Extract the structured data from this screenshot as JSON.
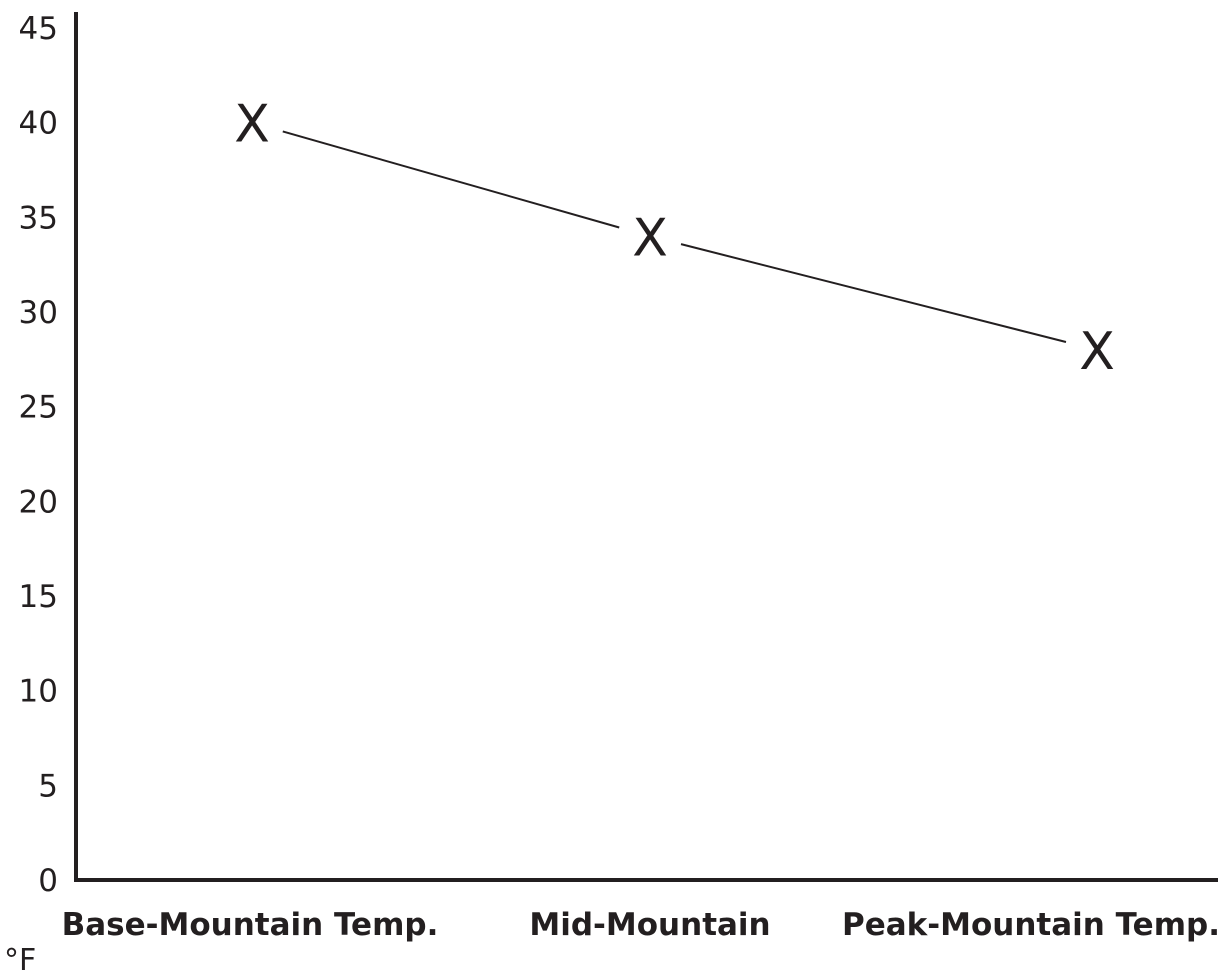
{
  "chart_data": {
    "type": "line",
    "categories": [
      "Base-Mountain Temp.",
      "Mid-Mountain",
      "Peak-Mountain Temp."
    ],
    "values": [
      40,
      34,
      28
    ],
    "marker": "X",
    "yticks": [
      0,
      5,
      10,
      15,
      20,
      25,
      30,
      35,
      40,
      45
    ],
    "ylim": [
      0,
      45
    ],
    "ylabel": "°F",
    "title": "",
    "xlabel": "",
    "grid": false,
    "colors": {
      "line": "#231f20",
      "axis": "#231f20",
      "text": "#231f20"
    }
  }
}
